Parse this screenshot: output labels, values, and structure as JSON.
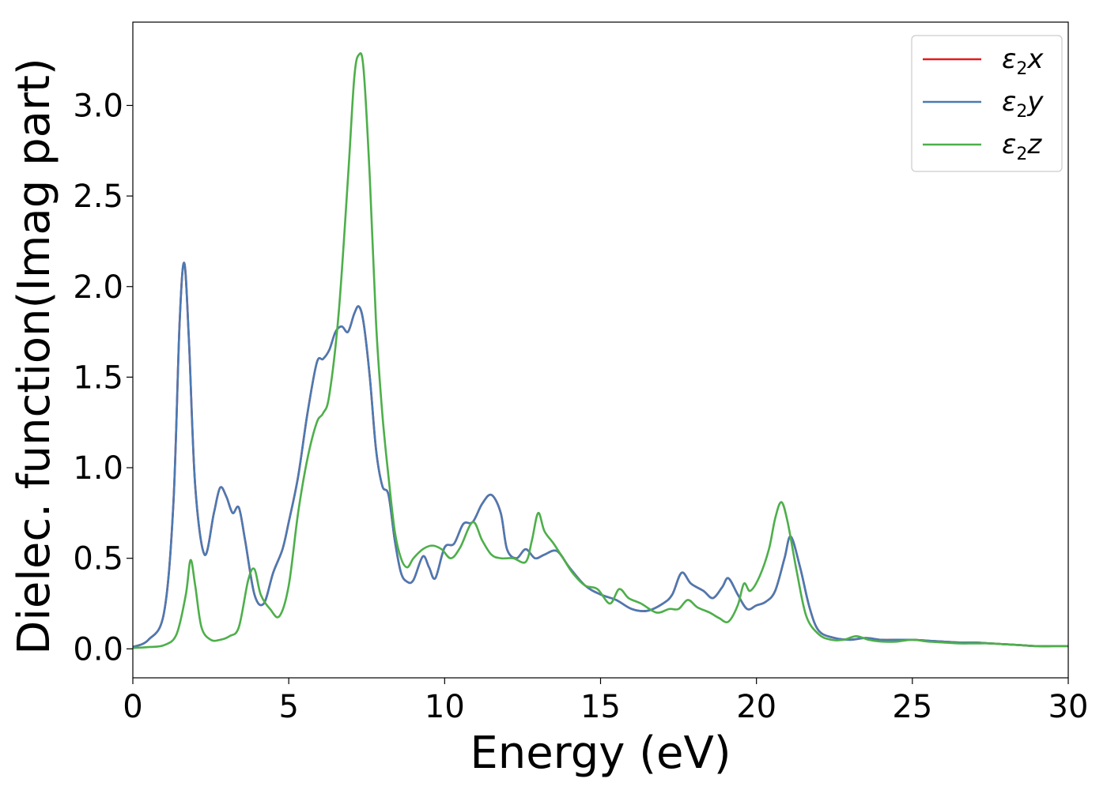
{
  "chart_data": {
    "type": "line",
    "title": "",
    "xlabel": "Energy (eV)",
    "ylabel": "Dielec. function(Imag part)",
    "xlim": [
      0,
      30
    ],
    "ylim": [
      -0.16,
      3.46
    ],
    "xticks": [
      0,
      5,
      10,
      15,
      20,
      25,
      30
    ],
    "xtick_labels": [
      "0",
      "5",
      "10",
      "15",
      "20",
      "25",
      "30"
    ],
    "yticks": [
      0.0,
      0.5,
      1.0,
      1.5,
      2.0,
      2.5,
      3.0
    ],
    "ytick_labels": [
      "0.0",
      "0.5",
      "1.0",
      "1.5",
      "2.0",
      "2.5",
      "3.0"
    ],
    "grid": false,
    "legend_position": "top-right",
    "series": [
      {
        "name": "ε2x",
        "name_base": "ε",
        "name_sub": "2",
        "name_var": "x",
        "color": "#e41a1c",
        "x": [
          0,
          0.5,
          1.0,
          1.3,
          1.5,
          1.65,
          1.8,
          2.0,
          2.3,
          2.6,
          2.8,
          3.0,
          3.2,
          3.4,
          3.6,
          3.9,
          4.2,
          4.5,
          4.8,
          5.0,
          5.3,
          5.6,
          5.9,
          6.1,
          6.3,
          6.5,
          6.7,
          6.9,
          7.1,
          7.25,
          7.4,
          7.6,
          7.8,
          8.0,
          8.2,
          8.4,
          8.6,
          8.8,
          9.0,
          9.3,
          9.5,
          9.7,
          10.0,
          10.3,
          10.6,
          10.9,
          11.2,
          11.5,
          11.8,
          12.0,
          12.3,
          12.6,
          12.9,
          13.2,
          13.6,
          14.0,
          14.5,
          15.0,
          15.5,
          16.0,
          16.5,
          17.0,
          17.3,
          17.6,
          17.9,
          18.3,
          18.6,
          18.9,
          19.1,
          19.4,
          19.7,
          20.0,
          20.3,
          20.6,
          20.9,
          21.1,
          21.4,
          21.7,
          22.0,
          22.5,
          23.0,
          23.5,
          24.0,
          24.5,
          25.0,
          25.5,
          26.0,
          26.5,
          27.0,
          27.5,
          28.0,
          28.5,
          29.0,
          29.5,
          30.0
        ],
        "y": [
          0.01,
          0.05,
          0.2,
          0.8,
          1.8,
          2.13,
          1.7,
          0.9,
          0.52,
          0.75,
          0.89,
          0.84,
          0.75,
          0.78,
          0.6,
          0.3,
          0.25,
          0.42,
          0.55,
          0.7,
          0.95,
          1.3,
          1.58,
          1.6,
          1.65,
          1.75,
          1.78,
          1.75,
          1.85,
          1.89,
          1.8,
          1.5,
          1.1,
          0.9,
          0.85,
          0.6,
          0.42,
          0.37,
          0.38,
          0.51,
          0.45,
          0.39,
          0.56,
          0.58,
          0.69,
          0.7,
          0.8,
          0.85,
          0.75,
          0.55,
          0.5,
          0.55,
          0.5,
          0.52,
          0.54,
          0.45,
          0.35,
          0.3,
          0.27,
          0.22,
          0.21,
          0.25,
          0.3,
          0.42,
          0.36,
          0.32,
          0.28,
          0.34,
          0.39,
          0.3,
          0.22,
          0.24,
          0.26,
          0.32,
          0.5,
          0.62,
          0.45,
          0.23,
          0.1,
          0.06,
          0.05,
          0.06,
          0.05,
          0.05,
          0.05,
          0.045,
          0.04,
          0.035,
          0.035,
          0.03,
          0.025,
          0.02,
          0.015,
          0.015,
          0.015
        ]
      },
      {
        "name": "ε2y",
        "name_base": "ε",
        "name_sub": "2",
        "name_var": "y",
        "color": "#4a7ab3",
        "x": [
          0,
          0.5,
          1.0,
          1.3,
          1.5,
          1.65,
          1.8,
          2.0,
          2.3,
          2.6,
          2.8,
          3.0,
          3.2,
          3.4,
          3.6,
          3.9,
          4.2,
          4.5,
          4.8,
          5.0,
          5.3,
          5.6,
          5.9,
          6.1,
          6.3,
          6.5,
          6.7,
          6.9,
          7.1,
          7.25,
          7.4,
          7.6,
          7.8,
          8.0,
          8.2,
          8.4,
          8.6,
          8.8,
          9.0,
          9.3,
          9.5,
          9.7,
          10.0,
          10.3,
          10.6,
          10.9,
          11.2,
          11.5,
          11.8,
          12.0,
          12.3,
          12.6,
          12.9,
          13.2,
          13.6,
          14.0,
          14.5,
          15.0,
          15.5,
          16.0,
          16.5,
          17.0,
          17.3,
          17.6,
          17.9,
          18.3,
          18.6,
          18.9,
          19.1,
          19.4,
          19.7,
          20.0,
          20.3,
          20.6,
          20.9,
          21.1,
          21.4,
          21.7,
          22.0,
          22.5,
          23.0,
          23.5,
          24.0,
          24.5,
          25.0,
          25.5,
          26.0,
          26.5,
          27.0,
          27.5,
          28.0,
          28.5,
          29.0,
          29.5,
          30.0
        ],
        "y": [
          0.01,
          0.05,
          0.2,
          0.8,
          1.8,
          2.13,
          1.7,
          0.9,
          0.52,
          0.75,
          0.89,
          0.84,
          0.75,
          0.78,
          0.6,
          0.3,
          0.25,
          0.42,
          0.55,
          0.7,
          0.95,
          1.3,
          1.58,
          1.6,
          1.65,
          1.75,
          1.78,
          1.75,
          1.85,
          1.89,
          1.8,
          1.5,
          1.1,
          0.9,
          0.85,
          0.6,
          0.42,
          0.37,
          0.38,
          0.51,
          0.45,
          0.39,
          0.56,
          0.58,
          0.69,
          0.7,
          0.8,
          0.85,
          0.75,
          0.55,
          0.5,
          0.55,
          0.5,
          0.52,
          0.54,
          0.45,
          0.35,
          0.3,
          0.27,
          0.22,
          0.21,
          0.25,
          0.3,
          0.42,
          0.36,
          0.32,
          0.28,
          0.34,
          0.39,
          0.3,
          0.22,
          0.24,
          0.26,
          0.32,
          0.5,
          0.62,
          0.45,
          0.23,
          0.1,
          0.06,
          0.05,
          0.06,
          0.05,
          0.05,
          0.05,
          0.045,
          0.04,
          0.035,
          0.035,
          0.03,
          0.025,
          0.02,
          0.015,
          0.015,
          0.015
        ]
      },
      {
        "name": "ε2z",
        "name_base": "ε",
        "name_sub": "2",
        "name_var": "z",
        "color": "#4daf4a",
        "x": [
          0,
          0.5,
          1.0,
          1.4,
          1.7,
          1.85,
          2.0,
          2.2,
          2.5,
          2.8,
          3.1,
          3.4,
          3.7,
          3.9,
          4.1,
          4.4,
          4.7,
          5.0,
          5.3,
          5.6,
          5.9,
          6.1,
          6.3,
          6.6,
          6.9,
          7.1,
          7.25,
          7.4,
          7.6,
          7.8,
          8.0,
          8.2,
          8.4,
          8.6,
          8.8,
          9.0,
          9.3,
          9.6,
          9.9,
          10.2,
          10.5,
          10.9,
          11.2,
          11.5,
          11.8,
          12.2,
          12.6,
          12.8,
          13.0,
          13.2,
          13.5,
          13.8,
          14.1,
          14.5,
          14.9,
          15.3,
          15.6,
          15.9,
          16.3,
          16.8,
          17.2,
          17.5,
          17.8,
          18.1,
          18.5,
          18.8,
          19.1,
          19.4,
          19.6,
          19.8,
          20.1,
          20.4,
          20.6,
          20.8,
          21.0,
          21.3,
          21.6,
          22.0,
          22.4,
          22.8,
          23.2,
          23.6,
          24.0,
          24.5,
          25.0,
          25.5,
          26.0,
          26.5,
          27.0,
          27.5,
          28.0,
          28.5,
          29.0,
          29.5,
          30.0
        ],
        "y": [
          0.005,
          0.01,
          0.02,
          0.08,
          0.3,
          0.49,
          0.35,
          0.12,
          0.05,
          0.05,
          0.07,
          0.12,
          0.38,
          0.44,
          0.3,
          0.22,
          0.18,
          0.35,
          0.75,
          1.05,
          1.25,
          1.3,
          1.4,
          1.85,
          2.6,
          3.15,
          3.28,
          3.2,
          2.6,
          1.8,
          1.3,
          0.95,
          0.65,
          0.5,
          0.45,
          0.5,
          0.55,
          0.57,
          0.55,
          0.5,
          0.56,
          0.7,
          0.6,
          0.52,
          0.5,
          0.5,
          0.48,
          0.6,
          0.75,
          0.65,
          0.58,
          0.5,
          0.42,
          0.35,
          0.33,
          0.25,
          0.33,
          0.28,
          0.25,
          0.2,
          0.22,
          0.22,
          0.27,
          0.23,
          0.2,
          0.17,
          0.15,
          0.24,
          0.36,
          0.32,
          0.4,
          0.55,
          0.72,
          0.81,
          0.7,
          0.42,
          0.18,
          0.08,
          0.05,
          0.05,
          0.07,
          0.05,
          0.04,
          0.04,
          0.05,
          0.04,
          0.035,
          0.03,
          0.03,
          0.03,
          0.025,
          0.02,
          0.015,
          0.015,
          0.015
        ]
      }
    ]
  }
}
